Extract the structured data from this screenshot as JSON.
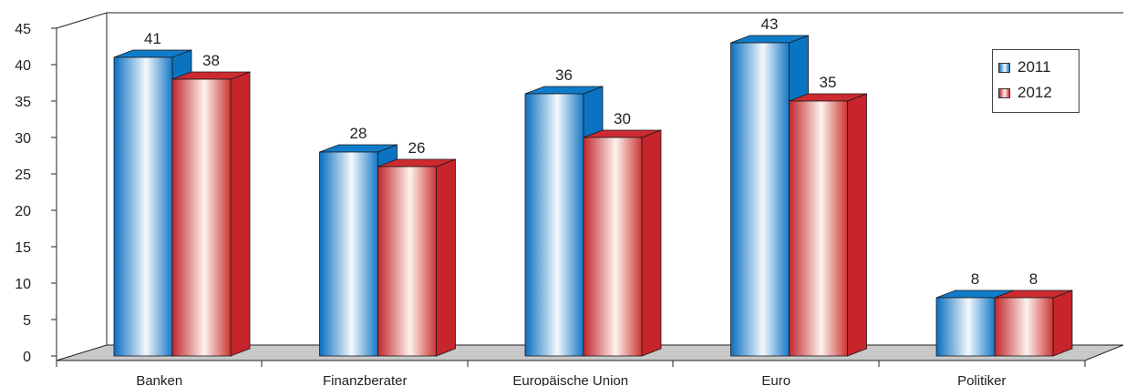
{
  "chart_data": {
    "type": "bar",
    "categories": [
      "Banken",
      "Finanzberater",
      "Europäische Union",
      "Euro",
      "Politiker"
    ],
    "series": [
      {
        "name": "2011",
        "values": [
          41,
          28,
          36,
          43,
          8
        ],
        "color": "#0a78c8"
      },
      {
        "name": "2012",
        "values": [
          38,
          26,
          30,
          35,
          8
        ],
        "color": "#c8242b"
      }
    ],
    "ylim": [
      0,
      45
    ],
    "yticks": [
      0,
      5,
      10,
      15,
      20,
      25,
      30,
      35,
      40,
      45
    ],
    "grid": false,
    "legend_position": "top-right",
    "style": "3d"
  }
}
